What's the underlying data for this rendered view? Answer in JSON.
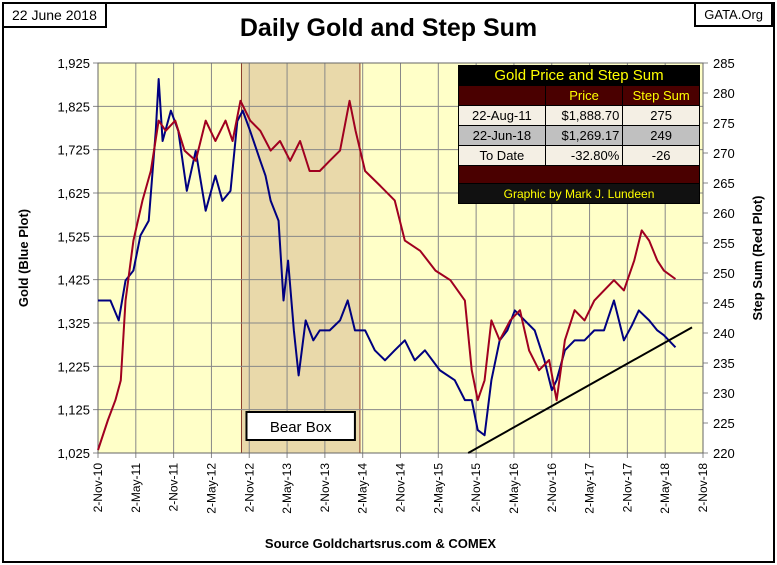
{
  "date_tag": "22 June 2018",
  "source_tag": "GATA.Org",
  "chart_data": {
    "type": "line",
    "title": "Daily Gold and Step Sum",
    "xlabel": "Source Goldchartsrus.com & COMEX",
    "ylabel": "Gold  (Blue Plot)",
    "y2label": "Step Sum  (Red Plot)",
    "xlim": [
      "2010-11-02",
      "2018-11-02"
    ],
    "ylim": [
      1025,
      1925
    ],
    "y2lim": [
      220,
      285
    ],
    "grid": true,
    "x_ticks": [
      "2-Nov-10",
      "2-May-11",
      "2-Nov-11",
      "2-May-12",
      "2-Nov-12",
      "2-May-13",
      "2-Nov-13",
      "2-May-14",
      "2-Nov-14",
      "2-May-15",
      "2-Nov-15",
      "2-May-16",
      "2-Nov-16",
      "2-May-17",
      "2-Nov-17",
      "2-May-18",
      "2-Nov-18"
    ],
    "y_ticks": [
      "1,025",
      "1,125",
      "1,225",
      "1,325",
      "1,425",
      "1,525",
      "1,625",
      "1,725",
      "1,825",
      "1,925"
    ],
    "y2_ticks": [
      "220",
      "225",
      "230",
      "235",
      "240",
      "245",
      "250",
      "255",
      "260",
      "265",
      "270",
      "275",
      "280",
      "285"
    ],
    "series": [
      {
        "name": "Gold (Blue Plot)",
        "color": "#000080",
        "axis": "left",
        "points": [
          [
            "2010-11-02",
            1377
          ],
          [
            "2011-01-01",
            1377
          ],
          [
            "2011-02-10",
            1331
          ],
          [
            "2011-03-15",
            1423
          ],
          [
            "2011-04-22",
            1446
          ],
          [
            "2011-05-26",
            1527
          ],
          [
            "2011-07-05",
            1561
          ],
          [
            "2011-08-08",
            1768
          ],
          [
            "2011-08-22",
            1888
          ],
          [
            "2011-09-10",
            1745
          ],
          [
            "2011-10-20",
            1815
          ],
          [
            "2011-11-25",
            1768
          ],
          [
            "2012-01-05",
            1630
          ],
          [
            "2012-02-17",
            1722
          ],
          [
            "2012-04-05",
            1584
          ],
          [
            "2012-05-22",
            1665
          ],
          [
            "2012-06-25",
            1607
          ],
          [
            "2012-08-03",
            1630
          ],
          [
            "2012-09-05",
            1791
          ],
          [
            "2012-10-01",
            1815
          ],
          [
            "2012-11-06",
            1768
          ],
          [
            "2012-12-25",
            1699
          ],
          [
            "2013-01-19",
            1665
          ],
          [
            "2013-02-13",
            1607
          ],
          [
            "2013-03-23",
            1561
          ],
          [
            "2013-04-16",
            1377
          ],
          [
            "2013-05-08",
            1469
          ],
          [
            "2013-06-05",
            1308
          ],
          [
            "2013-06-28",
            1204
          ],
          [
            "2013-08-01",
            1331
          ],
          [
            "2013-09-07",
            1285
          ],
          [
            "2013-10-08",
            1308
          ],
          [
            "2013-11-25",
            1308
          ],
          [
            "2014-01-14",
            1331
          ],
          [
            "2014-02-20",
            1377
          ],
          [
            "2014-03-27",
            1308
          ],
          [
            "2014-05-15",
            1308
          ],
          [
            "2014-07-01",
            1262
          ],
          [
            "2014-08-19",
            1239
          ],
          [
            "2014-10-05",
            1262
          ],
          [
            "2014-11-23",
            1285
          ],
          [
            "2015-01-10",
            1239
          ],
          [
            "2015-02-28",
            1262
          ],
          [
            "2015-05-11",
            1216
          ],
          [
            "2015-07-22",
            1193
          ],
          [
            "2015-09-09",
            1147
          ],
          [
            "2015-10-12",
            1147
          ],
          [
            "2015-11-10",
            1078
          ],
          [
            "2015-12-13",
            1066
          ],
          [
            "2016-01-15",
            1193
          ],
          [
            "2016-02-24",
            1285
          ],
          [
            "2016-04-01",
            1308
          ],
          [
            "2016-05-07",
            1354
          ],
          [
            "2016-06-24",
            1331
          ],
          [
            "2016-08-11",
            1308
          ],
          [
            "2016-09-27",
            1239
          ],
          [
            "2016-11-02",
            1170
          ],
          [
            "2016-11-25",
            1193
          ],
          [
            "2017-01-04",
            1262
          ],
          [
            "2017-02-20",
            1285
          ],
          [
            "2017-04-09",
            1285
          ],
          [
            "2017-05-26",
            1308
          ],
          [
            "2017-07-12",
            1308
          ],
          [
            "2017-08-29",
            1377
          ],
          [
            "2017-10-16",
            1285
          ],
          [
            "2017-11-24",
            1320
          ],
          [
            "2017-12-27",
            1354
          ],
          [
            "2018-02-15",
            1331
          ],
          [
            "2018-03-26",
            1308
          ],
          [
            "2018-04-27",
            1297
          ],
          [
            "2018-06-22",
            1269
          ]
        ]
      },
      {
        "name": "Step Sum (Red Plot)",
        "color": "#a00020",
        "axis": "right",
        "points": [
          [
            "2010-11-02",
            220.5
          ],
          [
            "2010-12-20",
            225.5
          ],
          [
            "2011-01-25",
            228.8
          ],
          [
            "2011-02-20",
            232.1
          ],
          [
            "2011-03-15",
            245.4
          ],
          [
            "2011-04-22",
            255.4
          ],
          [
            "2011-06-05",
            262.1
          ],
          [
            "2011-07-15",
            267.0
          ],
          [
            "2011-08-22",
            275.4
          ],
          [
            "2011-09-25",
            273.7
          ],
          [
            "2011-11-10",
            275.4
          ],
          [
            "2011-12-25",
            270.4
          ],
          [
            "2012-02-17",
            268.7
          ],
          [
            "2012-04-05",
            275.4
          ],
          [
            "2012-05-22",
            272.0
          ],
          [
            "2012-07-10",
            275.4
          ],
          [
            "2012-08-13",
            272.0
          ],
          [
            "2012-09-20",
            278.7
          ],
          [
            "2012-11-06",
            275.4
          ],
          [
            "2012-12-25",
            273.7
          ],
          [
            "2013-02-13",
            270.4
          ],
          [
            "2013-03-30",
            272.0
          ],
          [
            "2013-05-18",
            268.7
          ],
          [
            "2013-07-05",
            272.0
          ],
          [
            "2013-08-20",
            267.0
          ],
          [
            "2013-10-08",
            267.0
          ],
          [
            "2013-11-25",
            268.7
          ],
          [
            "2014-01-14",
            270.4
          ],
          [
            "2014-03-01",
            278.7
          ],
          [
            "2014-03-30",
            273.7
          ],
          [
            "2014-05-15",
            267.0
          ],
          [
            "2014-07-25",
            264.6
          ],
          [
            "2014-10-05",
            262.1
          ],
          [
            "2014-11-23",
            255.4
          ],
          [
            "2015-02-05",
            253.7
          ],
          [
            "2015-04-20",
            250.4
          ],
          [
            "2015-07-01",
            248.8
          ],
          [
            "2015-09-09",
            245.4
          ],
          [
            "2015-10-12",
            233.8
          ],
          [
            "2015-11-10",
            228.8
          ],
          [
            "2015-12-13",
            232.1
          ],
          [
            "2016-01-15",
            242.1
          ],
          [
            "2016-02-24",
            238.8
          ],
          [
            "2016-04-15",
            242.1
          ],
          [
            "2016-06-01",
            243.8
          ],
          [
            "2016-07-15",
            237.1
          ],
          [
            "2016-09-01",
            233.8
          ],
          [
            "2016-10-20",
            235.5
          ],
          [
            "2016-11-25",
            228.8
          ],
          [
            "2017-01-04",
            238.8
          ],
          [
            "2017-02-20",
            243.8
          ],
          [
            "2017-04-09",
            242.1
          ],
          [
            "2017-05-26",
            245.4
          ],
          [
            "2017-07-12",
            247.1
          ],
          [
            "2017-08-29",
            248.8
          ],
          [
            "2017-10-16",
            247.1
          ],
          [
            "2017-12-05",
            252.1
          ],
          [
            "2018-01-10",
            257.1
          ],
          [
            "2018-02-15",
            255.4
          ],
          [
            "2018-03-26",
            252.1
          ],
          [
            "2018-04-27",
            250.4
          ],
          [
            "2018-06-22",
            249
          ]
        ]
      }
    ],
    "trendline": {
      "color": "#000000",
      "points": [
        [
          "2015-09-25",
          1025
        ],
        [
          "2018-09-10",
          1315
        ]
      ]
    },
    "annotations": {
      "bear_box": {
        "label": "Bear Box",
        "from": "2012-09-25",
        "to": "2014-04-20"
      }
    }
  },
  "table": {
    "title": "Gold Price and Step Sum",
    "headers": [
      "",
      "Price",
      "Step Sum"
    ],
    "rows": [
      [
        "22-Aug-11",
        "$1,888.70",
        "275"
      ],
      [
        "22-Jun-18",
        "$1,269.17",
        "249"
      ],
      [
        "To Date",
        "-32.80%",
        "-26"
      ]
    ],
    "footer": "Graphic by Mark J. Lundeen"
  },
  "colors": {
    "plot_bg": "#ffffc8",
    "bear_box": "#e9d9aa",
    "gold": "#000080",
    "step_sum": "#a00020"
  }
}
